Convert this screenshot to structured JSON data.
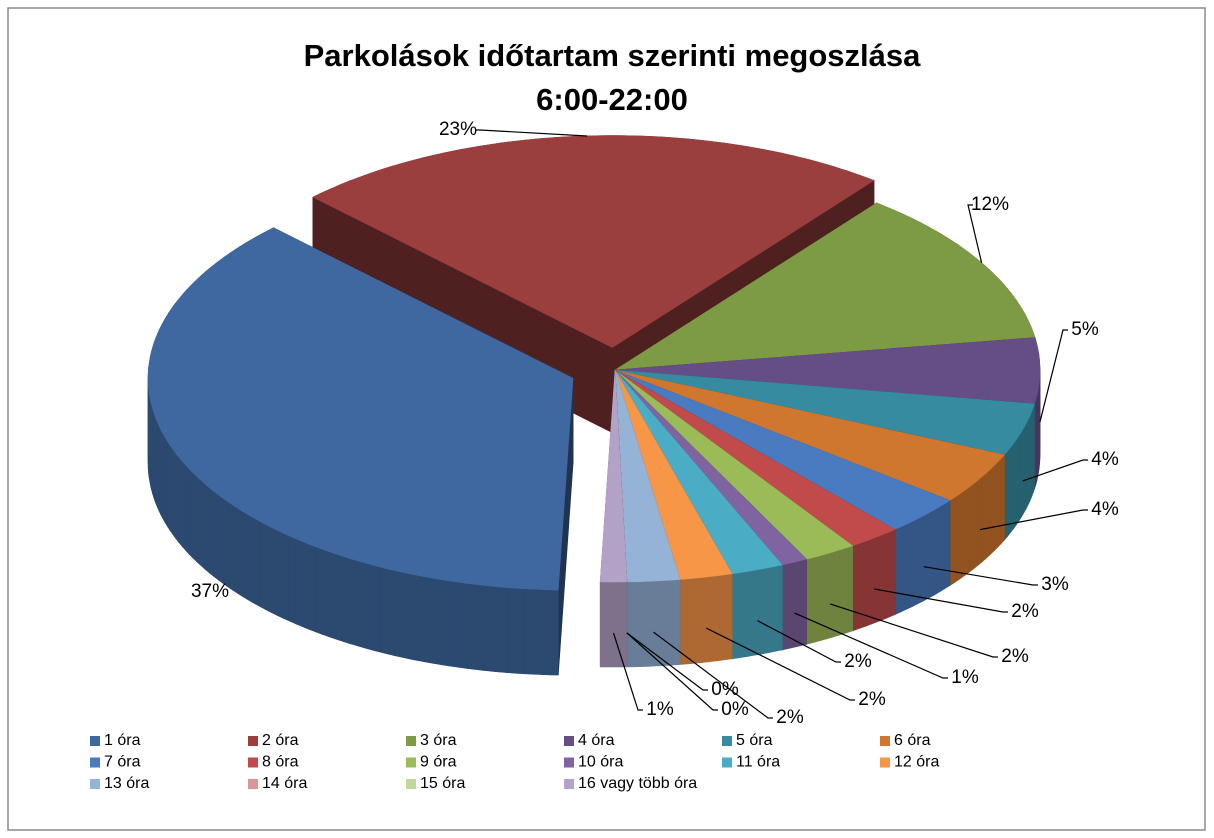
{
  "chart_data": {
    "type": "pie3d",
    "title": [
      "Parkolások időtartam szerinti megoszlása",
      "6:00-22:00"
    ],
    "categories": [
      "1 óra",
      "2 óra",
      "3 óra",
      "4 óra",
      "5 óra",
      "6 óra",
      "7 óra",
      "8 óra",
      "9 óra",
      "10 óra",
      "11 óra",
      "12 óra",
      "13 óra",
      "14 óra",
      "15 óra",
      "16 vagy több óra"
    ],
    "values": [
      37,
      23,
      12,
      5,
      4,
      4,
      3,
      2,
      2,
      1,
      2,
      2,
      2,
      0,
      0,
      1
    ],
    "value_labels": [
      "37%",
      "23%",
      "12%",
      "5%",
      "4%",
      "4%",
      "3%",
      "2%",
      "2%",
      "1%",
      "2%",
      "2%",
      "2%",
      "0%",
      "0%",
      "1%"
    ],
    "colors": [
      "#3f68a0",
      "#9b3f3e",
      "#7d9a45",
      "#654d86",
      "#368ba0",
      "#d0772f",
      "#4a7bc0",
      "#c04b4a",
      "#9bbb59",
      "#8064a2",
      "#4bacc6",
      "#f79646",
      "#95b3d7",
      "#da9694",
      "#c3d69b",
      "#b3a2c7"
    ],
    "legend": "bottom"
  }
}
